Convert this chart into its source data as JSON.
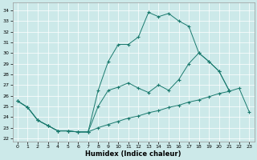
{
  "background_color": "#cce9e9",
  "line_color": "#1a7a6e",
  "xlabel": "Humidex (Indice chaleur)",
  "xlim": [
    -0.5,
    23.5
  ],
  "ylim": [
    21.7,
    34.7
  ],
  "xticks": [
    0,
    1,
    2,
    3,
    4,
    5,
    6,
    7,
    8,
    9,
    10,
    11,
    12,
    13,
    14,
    15,
    16,
    17,
    18,
    19,
    20,
    21,
    22,
    23
  ],
  "yticks": [
    22,
    23,
    24,
    25,
    26,
    27,
    28,
    29,
    30,
    31,
    32,
    33,
    34
  ],
  "s1_x": [
    0,
    1,
    2,
    3,
    4,
    5,
    6,
    7,
    8,
    9,
    10,
    11,
    12,
    13,
    14,
    15,
    16,
    17,
    18,
    19,
    20,
    21,
    22,
    23
  ],
  "s1_y": [
    25.5,
    24.9,
    23.7,
    23.2,
    22.7,
    22.7,
    22.6,
    22.6,
    23.0,
    23.3,
    23.6,
    23.9,
    24.1,
    24.4,
    24.6,
    24.9,
    25.1,
    25.4,
    25.6,
    25.9,
    26.2,
    26.4,
    26.7,
    24.5
  ],
  "s2_x": [
    0,
    1,
    2,
    3,
    4,
    5,
    6,
    7,
    8,
    9,
    10,
    11,
    12,
    13,
    14,
    15,
    16,
    17,
    18,
    19,
    20,
    21,
    22,
    23
  ],
  "s2_y": [
    25.5,
    24.9,
    23.7,
    23.2,
    22.7,
    22.7,
    22.6,
    22.6,
    25.0,
    26.5,
    26.8,
    27.2,
    26.7,
    26.3,
    27.0,
    26.5,
    27.5,
    29.0,
    30.0,
    29.2,
    28.3,
    26.5,
    null,
    null
  ],
  "s3_x": [
    0,
    1,
    2,
    3,
    4,
    5,
    6,
    7,
    8,
    9,
    10,
    11,
    12,
    13,
    14,
    15,
    16,
    17,
    18,
    19,
    20,
    21,
    22,
    23
  ],
  "s3_y": [
    25.5,
    24.9,
    23.7,
    23.2,
    22.7,
    22.7,
    22.6,
    22.6,
    26.5,
    29.2,
    30.8,
    30.8,
    31.5,
    33.8,
    33.4,
    33.7,
    33.0,
    32.5,
    30.0,
    29.2,
    28.3,
    26.5,
    null,
    null
  ]
}
